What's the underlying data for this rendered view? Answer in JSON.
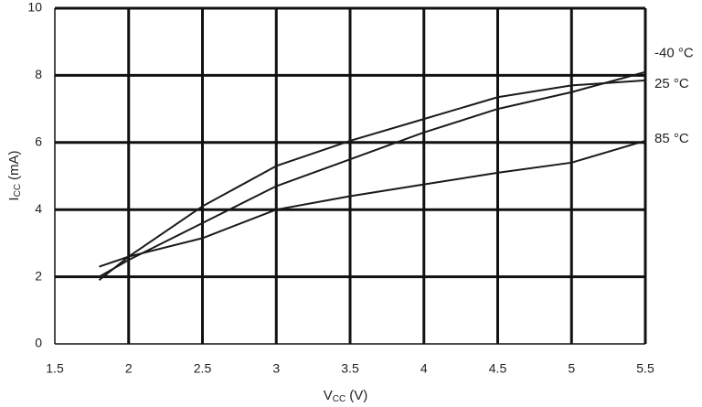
{
  "chart_data": {
    "type": "line",
    "x_label": {
      "symbol": "V",
      "subscript": "CC",
      "unit": "(V)"
    },
    "y_label": {
      "symbol": "I",
      "subscript": "CC",
      "unit": "(mA)"
    },
    "x": [
      1.8,
      2,
      2.5,
      3,
      3.5,
      4,
      4.5,
      5,
      5.5
    ],
    "series": [
      {
        "name": "-40 °C",
        "color": "#1a1a1a",
        "values": [
          2.0,
          2.5,
          3.6,
          4.7,
          5.5,
          6.3,
          7.0,
          7.5,
          8.1
        ]
      },
      {
        "name": "25 °C",
        "color": "#1a1a1a",
        "values": [
          1.9,
          2.6,
          4.1,
          5.3,
          6.05,
          6.7,
          7.35,
          7.7,
          7.85
        ]
      },
      {
        "name": "85 °C",
        "color": "#1a1a1a",
        "values": [
          2.3,
          2.6,
          3.15,
          4.0,
          4.4,
          4.75,
          5.1,
          5.4,
          6.05
        ]
      }
    ],
    "xlim": [
      1.5,
      5.5
    ],
    "xticks": [
      1.5,
      2,
      2.5,
      3,
      3.5,
      4,
      4.5,
      5,
      5.5
    ],
    "ylim": [
      0,
      10
    ],
    "yticks": [
      0,
      2,
      4,
      6,
      8,
      10
    ],
    "grid": true
  }
}
